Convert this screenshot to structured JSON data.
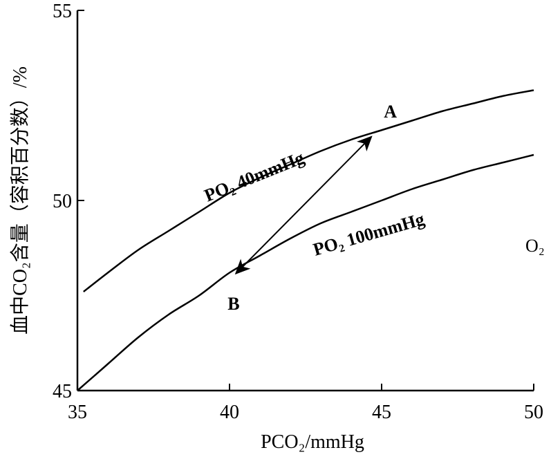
{
  "chart_data": {
    "type": "line",
    "xlabel": "PCO₂/mmHg",
    "ylabel": "血中CO₂含量（容积百分数）/%",
    "xlim": [
      35,
      50
    ],
    "ylim": [
      45,
      55
    ],
    "x_ticks": [
      "35",
      "40",
      "45",
      "50"
    ],
    "y_ticks": [
      "45",
      "50",
      "55"
    ],
    "grid": false,
    "series": [
      {
        "name": "PO₂ 40mmHg",
        "color": "#000000",
        "x": [
          35.2,
          36,
          37,
          38,
          39,
          40,
          41,
          42,
          43,
          44,
          45,
          46,
          47,
          48,
          49,
          50
        ],
        "y": [
          47.6,
          48.1,
          48.7,
          49.2,
          49.7,
          50.2,
          50.6,
          50.95,
          51.3,
          51.6,
          51.85,
          52.1,
          52.35,
          52.55,
          52.75,
          52.9
        ]
      },
      {
        "name": "PO₂ 100mmHg",
        "color": "#000000",
        "x": [
          35,
          36,
          37,
          38,
          39,
          40,
          41,
          42,
          43,
          44,
          45,
          46,
          47,
          48,
          49,
          50
        ],
        "y": [
          45.0,
          45.7,
          46.4,
          47.0,
          47.5,
          48.1,
          48.55,
          49.0,
          49.4,
          49.7,
          50.0,
          50.3,
          50.55,
          50.8,
          51.0,
          51.2
        ]
      }
    ],
    "annotations": {
      "A": {
        "label": "A",
        "x": 44.8,
        "y": 51.75
      },
      "B": {
        "label": "B",
        "x": 40.3,
        "y": 48.15
      },
      "arrow": "double-headed arrow between A and B",
      "o2_label": "O₂"
    }
  }
}
